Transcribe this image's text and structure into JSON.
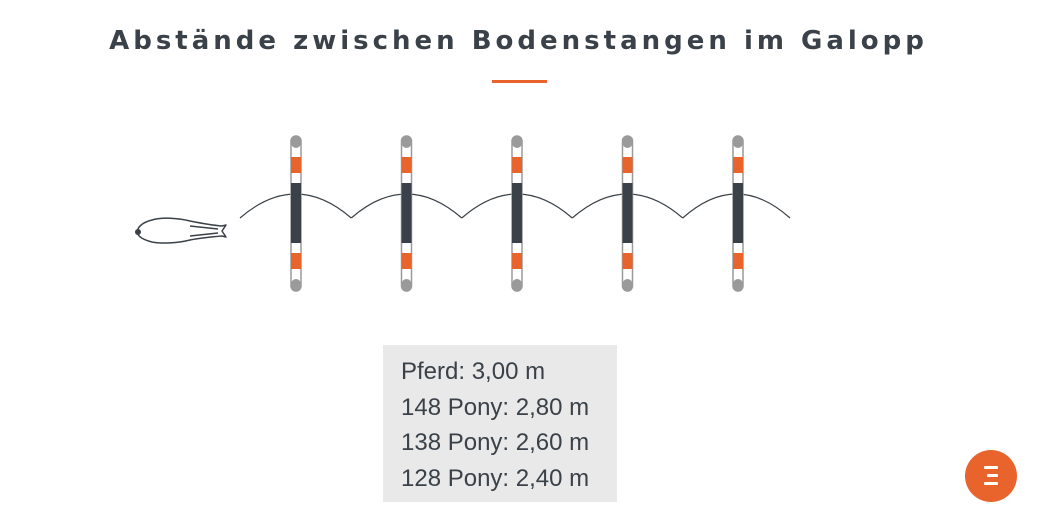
{
  "header": {
    "title": "Abstände zwischen Bodenstangen im Galopp"
  },
  "diagram": {
    "pole_count": 5,
    "colors": {
      "accent": "#e8642c",
      "pole_dark": "#3a4148",
      "pole_light": "#9a9a9a",
      "arc": "#3a4148"
    },
    "horse_icon": "horse-topdown-icon"
  },
  "distances": [
    {
      "text": "Pferd: 3,00 m"
    },
    {
      "text": "148 Pony: 2,80 m"
    },
    {
      "text": "138 Pony: 2,60 m"
    },
    {
      "text": "128 Pony: 2,40 m"
    }
  ],
  "menu": {
    "icon": "menu-icon"
  }
}
